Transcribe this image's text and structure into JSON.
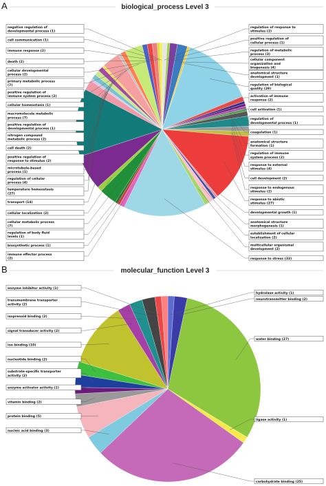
{
  "chart_data": [
    {
      "type": "pie",
      "panel": "A",
      "title": "biological_process Level 3",
      "slices": [
        {
          "label": "regulation of response to stimulus (2)",
          "value": 2,
          "color": "#e6e6e6"
        },
        {
          "label": "positive regulation of cellular process (1)",
          "value": 1,
          "color": "#9bd13a"
        },
        {
          "label": "regulation of metabolic process (3)",
          "value": 3,
          "color": "#7b3fa0"
        },
        {
          "label": "cellular component organization and biogenesis (4)",
          "value": 4,
          "color": "#3b7bbf"
        },
        {
          "label": "anatomical structure development (1)",
          "value": 1,
          "color": "#f0d040"
        },
        {
          "label": "regulation of biological quality (29)",
          "value": 29,
          "color": "#8fd3e8"
        },
        {
          "label": "activation of immune response (2)",
          "value": 2,
          "color": "#ec4b4b"
        },
        {
          "label": "cell activation (1)",
          "value": 1,
          "color": "#2d2d8a"
        },
        {
          "label": "regulation of developmental process (1)",
          "value": 1,
          "color": "#6a1b7a"
        },
        {
          "label": "coagulation (1)",
          "value": 1,
          "color": "#b04fb0"
        },
        {
          "label": "anatomical structure formation (1)",
          "value": 1,
          "color": "#4aa34a"
        },
        {
          "label": "regulation of immune system process (2)",
          "value": 2,
          "color": "#555555"
        },
        {
          "label": "response to external stimulus (4)",
          "value": 4,
          "color": "#1e8a8a"
        },
        {
          "label": "cell development (2)",
          "value": 2,
          "color": "#9a9a9a"
        },
        {
          "label": "response to endogenous stimulus (2)",
          "value": 2,
          "color": "#c0c040"
        },
        {
          "label": "response to abiotic stimulus (27)",
          "value": 27,
          "color": "#ec3c3c"
        },
        {
          "label": "developmental growth (1)",
          "value": 1,
          "color": "#f2a0b0"
        },
        {
          "label": "anatomical structure morphogenesis (1)",
          "value": 1,
          "color": "#3355aa"
        },
        {
          "label": "establishment of cellular localization (2)",
          "value": 2,
          "color": "#ffc0cb"
        },
        {
          "label": "multicellular organismal development (2)",
          "value": 2,
          "color": "#a8d66b"
        },
        {
          "label": "response to stress (33)",
          "value": 33,
          "color": "#9ed8e6"
        },
        {
          "label": "immune effector process (2)",
          "value": 2,
          "color": "#e066c0"
        },
        {
          "label": "biosynthetic process (1)",
          "value": 1,
          "color": "#d33a3a"
        },
        {
          "label": "regulation of body fluid levels (1)",
          "value": 1,
          "color": "#2f6f2f"
        },
        {
          "label": "cellular metabolic process (7)",
          "value": 7,
          "color": "#1f8f3a"
        },
        {
          "label": "cellular localization (2)",
          "value": 2,
          "color": "#9ccf3f"
        },
        {
          "label": "transport (14)",
          "value": 14,
          "color": "#7b2a8f"
        },
        {
          "label": "temperature homeostasis (27)",
          "value": 27,
          "color": "#127a78"
        },
        {
          "label": "regulation of cellular process (4)",
          "value": 4,
          "color": "#f09aa8"
        },
        {
          "label": "microtubule-based process (1)",
          "value": 1,
          "color": "#d9c8e8"
        },
        {
          "label": "positive regulation of response to stimulus (2)",
          "value": 2,
          "color": "#7ac0d0"
        },
        {
          "label": "cell death (2)",
          "value": 2,
          "color": "#cfe88a"
        },
        {
          "label": "nitrogen compound metabolic process (2)",
          "value": 2,
          "color": "#a34aa3"
        },
        {
          "label": "positive regulation of developmental process (1)",
          "value": 1,
          "color": "#ffe060"
        },
        {
          "label": "macromolecule metabolic process (7)",
          "value": 7,
          "color": "#f4a0a0"
        },
        {
          "label": "cellular homeostasis (1)",
          "value": 1,
          "color": "#c3c3c3"
        },
        {
          "label": "positive regulation of immune system process (2)",
          "value": 2,
          "color": "#ff7f50"
        },
        {
          "label": "primary metabolic process (7)",
          "value": 7,
          "color": "#c6ea76"
        },
        {
          "label": "cellular developmental process (2)",
          "value": 2,
          "color": "#4b63c8"
        },
        {
          "label": "death (2)",
          "value": 2,
          "color": "#ec4545"
        },
        {
          "label": "immune response (2)",
          "value": 2,
          "color": "#ee8080"
        },
        {
          "label": "cell communication (1)",
          "value": 1,
          "color": "#dede3a"
        },
        {
          "label": "negative regulation of developmental process (1)",
          "value": 1,
          "color": "#f5ee55"
        }
      ],
      "label_layout": {
        "right": [
          {
            "lines": [
              "regulation of response to",
              "stimulus (2)"
            ],
            "slice": 0
          },
          {
            "lines": [
              "positive regulation of",
              "cellular process (1)"
            ],
            "slice": 1
          },
          {
            "lines": [
              "regulation of metabolic",
              "process (3)"
            ],
            "slice": 2
          },
          {
            "lines": [
              "cellular component",
              "organization and",
              "biogenesis (4)"
            ],
            "slice": 3
          },
          {
            "lines": [
              "anatomical structure",
              "development (1)"
            ],
            "slice": 4
          },
          {
            "lines": [
              "regulation of biological",
              "quality (29)"
            ],
            "slice": 5
          },
          {
            "lines": [
              "activation of immune",
              "response (2)"
            ],
            "slice": 6
          },
          {
            "lines": [
              "cell activation (1)"
            ],
            "slice": 7
          },
          {
            "lines": [
              "regulation of",
              "developmental process (1)"
            ],
            "slice": 8
          },
          {
            "lines": [
              "coagulation (1)"
            ],
            "slice": 9
          },
          {
            "lines": [
              "anatomical structure",
              "formation (1)"
            ],
            "slice": 10
          },
          {
            "lines": [
              "regulation of immune",
              "system process (2)"
            ],
            "slice": 11
          },
          {
            "lines": [
              "response to external",
              "stimulus (4)"
            ],
            "slice": 12
          },
          {
            "lines": [
              "cell development (2)"
            ],
            "slice": 13
          },
          {
            "lines": [
              "response to endogenous",
              "stimulus (2)"
            ],
            "slice": 14
          },
          {
            "lines": [
              "response to abiotic",
              "stimulus (27)"
            ],
            "slice": 15
          },
          {
            "lines": [
              "developmental growth (1)"
            ],
            "slice": 16
          },
          {
            "lines": [
              "anatomical structure",
              "morphogenesis (1)"
            ],
            "slice": 17
          },
          {
            "lines": [
              "establishment of cellular",
              "localization (2)"
            ],
            "slice": 18
          },
          {
            "lines": [
              "multicellular organismal",
              "development (2)"
            ],
            "slice": 19
          },
          {
            "lines": [
              "response to stress (33)"
            ],
            "slice": 20
          }
        ],
        "left": [
          {
            "lines": [
              "negative regulation of",
              "developmental process (1)"
            ],
            "slice": 42
          },
          {
            "lines": [
              "cell communication (1)"
            ],
            "slice": 41
          },
          {
            "lines": [
              "immune response (2)"
            ],
            "slice": 40
          },
          {
            "lines": [
              "death (2)"
            ],
            "slice": 39
          },
          {
            "lines": [
              "cellular developmental",
              "process (2)"
            ],
            "slice": 38
          },
          {
            "lines": [
              "primary metabolic process",
              "(7)"
            ],
            "slice": 37
          },
          {
            "lines": [
              "positive regulation of",
              "immune system process (2)"
            ],
            "slice": 36
          },
          {
            "lines": [
              "cellular homeostasis (1)"
            ],
            "slice": 35
          },
          {
            "lines": [
              "macromolecule metabolic",
              "process (7)"
            ],
            "slice": 34
          },
          {
            "lines": [
              "positive regulation of",
              "developmental process (1)"
            ],
            "slice": 33
          },
          {
            "lines": [
              "nitrogen compound",
              "metabolic process (2)"
            ],
            "slice": 32
          },
          {
            "lines": [
              "cell death (2)"
            ],
            "slice": 31
          },
          {
            "lines": [
              "positive regulation of",
              "response to stimulus (2)"
            ],
            "slice": 30
          },
          {
            "lines": [
              "microtubule-based",
              "process (1)"
            ],
            "slice": 29
          },
          {
            "lines": [
              "regulation of cellular",
              "process (4)"
            ],
            "slice": 28
          },
          {
            "lines": [
              "temperature homeostasis",
              "(27)"
            ],
            "slice": 27
          },
          {
            "lines": [
              "transport (14)"
            ],
            "slice": 26
          },
          {
            "lines": [
              "cellular localization (2)"
            ],
            "slice": 25
          },
          {
            "lines": [
              "cellular metabolic process",
              "(7)"
            ],
            "slice": 24
          },
          {
            "lines": [
              "regulation of body fluid",
              "levels (1)"
            ],
            "slice": 23
          },
          {
            "lines": [
              "biosynthetic process (1)"
            ],
            "slice": 22
          },
          {
            "lines": [
              "immune effector process",
              "(2)"
            ],
            "slice": 21
          }
        ]
      }
    },
    {
      "type": "pie",
      "panel": "B",
      "title": "molecular_function Level 3",
      "slices": [
        {
          "label": "hydrolase activity (1)",
          "value": 1,
          "color": "#5b6bd0"
        },
        {
          "label": "neurotransmitter binding (2)",
          "value": 2,
          "color": "#3b3ba8"
        },
        {
          "label": "water binding (27)",
          "value": 27,
          "color": "#8dc63f"
        },
        {
          "label": "ligase activity (1)",
          "value": 1,
          "color": "#f5ea4a"
        },
        {
          "label": "carbohydrate binding (25)",
          "value": 25,
          "color": "#c46ab8"
        },
        {
          "label": "nucleic acid binding (3)",
          "value": 3,
          "color": "#7ecbdf"
        },
        {
          "label": "protein binding (5)",
          "value": 5,
          "color": "#f5b5bd"
        },
        {
          "label": "vitamin binding (2)",
          "value": 2,
          "color": "#999999"
        },
        {
          "label": "enzyme activator activity (1)",
          "value": 1,
          "color": "#6a1a7a"
        },
        {
          "label": "substrate-specific transporter activity (2)",
          "value": 2,
          "color": "#1f3f9f"
        },
        {
          "label": "nucleotide binding (2)",
          "value": 2,
          "color": "#3fbf3f"
        },
        {
          "label": "ion binding (10)",
          "value": 10,
          "color": "#c0c22e"
        },
        {
          "label": "signal transducer activity (2)",
          "value": 2,
          "color": "#a63fa6"
        },
        {
          "label": "isoprenoid binding (2)",
          "value": 2,
          "color": "#1f8f8f"
        },
        {
          "label": "transmembrane transporter activity (2)",
          "value": 2,
          "color": "#444444"
        },
        {
          "label": "enzyme inhibitor activity (1)",
          "value": 1,
          "color": "#ec4848"
        },
        {
          "label": "",
          "value": 1,
          "color": "#ff8080"
        }
      ],
      "label_layout": {
        "right": [
          {
            "lines": [
              "hydrolase activity (1)"
            ],
            "slice": 0
          },
          {
            "lines": [
              "neurotransmitter binding (2)"
            ],
            "slice": 1
          },
          {
            "lines": [
              "water binding (27)"
            ],
            "slice": 2
          },
          {
            "lines": [
              "ligase activity (1)"
            ],
            "slice": 3
          },
          {
            "lines": [
              "carbohydrate binding (25)"
            ],
            "slice": 4
          }
        ],
        "left": [
          {
            "lines": [
              "enzyme inhibitor activity (1)"
            ],
            "slice": 15
          },
          {
            "lines": [
              "transmembrane transporter",
              "activity (2)"
            ],
            "slice": 14
          },
          {
            "lines": [
              "isoprenoid binding (2)"
            ],
            "slice": 13
          },
          {
            "lines": [
              "signal transducer activity (2)"
            ],
            "slice": 12
          },
          {
            "lines": [
              "ion binding (10)"
            ],
            "slice": 11
          },
          {
            "lines": [
              "nucleotide binding (2)"
            ],
            "slice": 10
          },
          {
            "lines": [
              "substrate-specific transporter",
              "activity (2)"
            ],
            "slice": 9
          },
          {
            "lines": [
              "enzyme activator activity (1)"
            ],
            "slice": 8
          },
          {
            "lines": [
              "vitamin binding (2)"
            ],
            "slice": 7
          },
          {
            "lines": [
              "protein binding (5)"
            ],
            "slice": 6
          },
          {
            "lines": [
              "nucleic acid binding (3)"
            ],
            "slice": 5
          }
        ]
      }
    }
  ]
}
